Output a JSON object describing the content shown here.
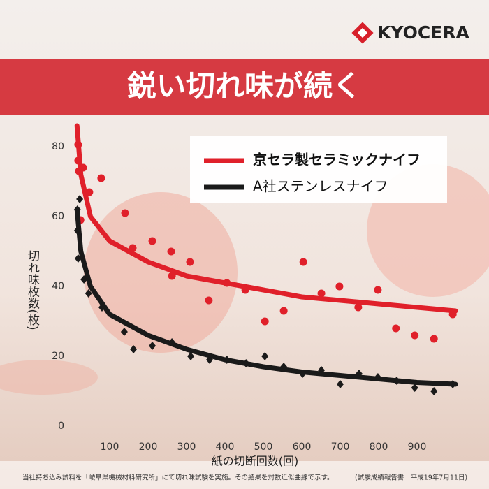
{
  "brand": "KYOCERA",
  "banner": "鋭い切れ味が続く",
  "chart_data": {
    "type": "scatter",
    "ylabel": "切れ味枚数(枚)",
    "xlabel": "紙の切断回数(回)",
    "xlim": [
      0,
      1000
    ],
    "ylim": [
      0,
      86
    ],
    "xticks": [
      100,
      200,
      300,
      400,
      500,
      600,
      700,
      800,
      900
    ],
    "yticks": [
      0,
      20,
      40,
      60,
      80
    ],
    "grid": false,
    "legend": "upper right",
    "series": [
      {
        "name": "京セラ製セラミックナイフ",
        "color": "#e0202a",
        "marker": "circle",
        "x": [
          18,
          18,
          20,
          31,
          24,
          47,
          78,
          140,
          160,
          211,
          260,
          262,
          309,
          358,
          405,
          453,
          504,
          553,
          604,
          651,
          698,
          747,
          798,
          845,
          894,
          944,
          993
        ],
        "values": [
          80.6,
          76,
          73,
          74,
          59,
          67,
          71,
          61,
          51,
          53,
          50,
          43,
          47,
          36,
          41,
          39,
          30,
          33,
          47,
          38,
          40,
          34,
          39,
          28,
          26,
          25,
          32
        ],
        "fit": {
          "x": [
            15,
            25,
            50,
            100,
            200,
            300,
            400,
            500,
            600,
            700,
            800,
            900,
            1000
          ],
          "values": [
            86,
            72,
            60,
            53,
            47,
            43,
            41,
            39,
            37,
            36,
            35,
            34,
            33
          ]
        }
      },
      {
        "name": "A社ステンレスナイフ",
        "color": "#1a1a1a",
        "marker": "diamond",
        "x": [
          16,
          16,
          18,
          22,
          33,
          80,
          45,
          138,
          162,
          211,
          262,
          311,
          360,
          405,
          455,
          504,
          553,
          602,
          651,
          700,
          749,
          798,
          847,
          894,
          944,
          993
        ],
        "values": [
          62,
          56,
          48,
          65,
          42,
          34,
          38,
          27,
          22,
          23,
          24,
          20,
          19,
          19,
          18,
          20,
          17,
          15,
          16,
          12,
          15,
          14,
          13,
          11,
          10,
          12
        ],
        "fit": {
          "x": [
            15,
            25,
            50,
            100,
            200,
            300,
            400,
            500,
            600,
            700,
            800,
            900,
            1000
          ],
          "values": [
            62,
            50,
            40,
            32,
            26,
            22,
            19,
            17,
            15.5,
            14.5,
            13.5,
            12.5,
            12
          ]
        }
      }
    ]
  },
  "footnote": [
    "当社持ち込み試料を「岐阜県機械材料研究所」にて切れ味試験を実施。その結果を対数近似曲線で示す。",
    "(試験成績報告書　平成19年7月11日)"
  ]
}
